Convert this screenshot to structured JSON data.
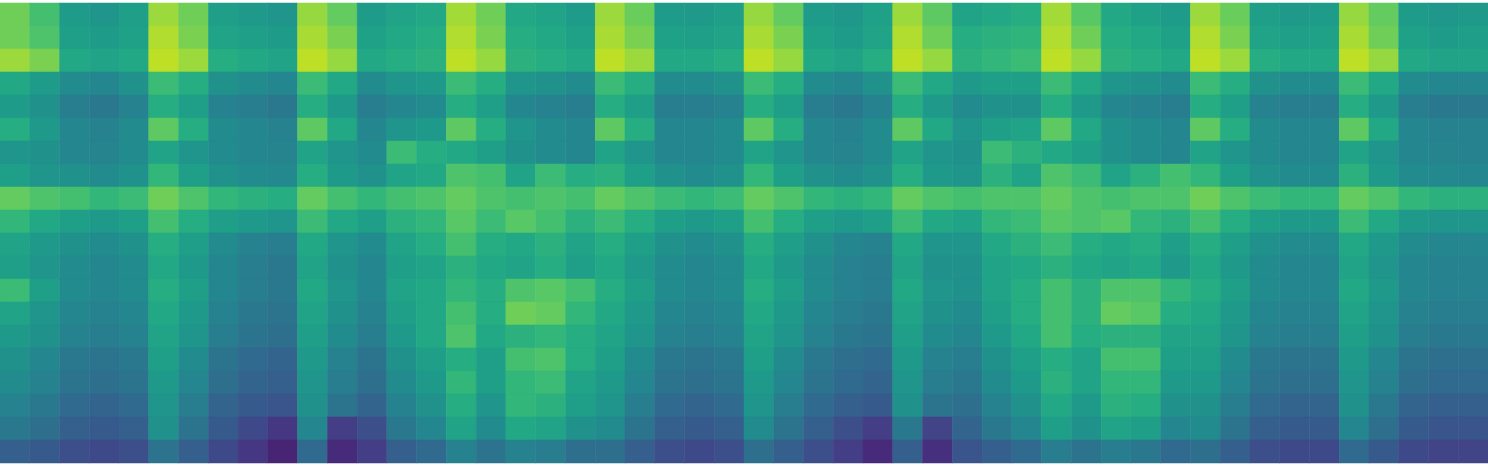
{
  "chart_data": {
    "type": "heatmap",
    "color": "viridis",
    "color_range": [
      0,
      100
    ],
    "tick_labels": false,
    "cells": [
      [
        78,
        70,
        55,
        52,
        56,
        85,
        78,
        56,
        54,
        52,
        84,
        76,
        55,
        58,
        60,
        86,
        78,
        60,
        58,
        55,
        85,
        77,
        55,
        54,
        56,
        84,
        76,
        55,
        53,
        57,
        85,
        75,
        58,
        60,
        62,
        86,
        74,
        60,
        57,
        55,
        85,
        77,
        56,
        54,
        55,
        84,
        76,
        55,
        53,
        54
      ],
      [
        78,
        72,
        56,
        55,
        57,
        88,
        80,
        58,
        56,
        55,
        87,
        80,
        57,
        60,
        62,
        88,
        80,
        62,
        60,
        57,
        87,
        80,
        57,
        56,
        58,
        87,
        80,
        57,
        55,
        58,
        88,
        78,
        62,
        64,
        65,
        88,
        78,
        62,
        60,
        57,
        88,
        80,
        58,
        56,
        57,
        87,
        78,
        57,
        55,
        56
      ],
      [
        85,
        80,
        60,
        58,
        60,
        90,
        85,
        62,
        60,
        58,
        90,
        84,
        60,
        62,
        64,
        90,
        84,
        64,
        62,
        60,
        90,
        85,
        60,
        60,
        62,
        90,
        84,
        60,
        58,
        62,
        90,
        84,
        64,
        66,
        68,
        90,
        84,
        64,
        62,
        60,
        90,
        85,
        62,
        60,
        60,
        90,
        84,
        60,
        58,
        58
      ],
      [
        60,
        55,
        48,
        46,
        50,
        68,
        62,
        50,
        48,
        46,
        68,
        60,
        48,
        52,
        54,
        68,
        62,
        52,
        50,
        48,
        68,
        62,
        48,
        48,
        50,
        68,
        62,
        48,
        46,
        50,
        68,
        60,
        54,
        56,
        56,
        68,
        60,
        52,
        50,
        48,
        68,
        62,
        50,
        48,
        48,
        68,
        60,
        48,
        46,
        46
      ],
      [
        55,
        50,
        42,
        40,
        44,
        62,
        56,
        44,
        42,
        40,
        62,
        54,
        42,
        46,
        48,
        62,
        56,
        46,
        44,
        42,
        62,
        56,
        42,
        42,
        44,
        62,
        56,
        42,
        40,
        44,
        62,
        54,
        48,
        50,
        50,
        62,
        54,
        46,
        44,
        42,
        62,
        56,
        44,
        42,
        42,
        62,
        54,
        42,
        40,
        40
      ],
      [
        62,
        54,
        46,
        44,
        48,
        75,
        62,
        48,
        46,
        44,
        75,
        60,
        46,
        52,
        54,
        75,
        62,
        52,
        48,
        46,
        75,
        62,
        46,
        46,
        48,
        75,
        62,
        46,
        44,
        48,
        75,
        60,
        52,
        56,
        58,
        75,
        60,
        50,
        48,
        46,
        75,
        62,
        48,
        46,
        46,
        75,
        60,
        46,
        44,
        44
      ],
      [
        52,
        50,
        46,
        45,
        48,
        58,
        52,
        48,
        46,
        45,
        58,
        52,
        48,
        68,
        62,
        60,
        56,
        50,
        48,
        46,
        58,
        52,
        46,
        46,
        48,
        58,
        52,
        46,
        45,
        48,
        58,
        52,
        50,
        68,
        64,
        60,
        56,
        50,
        48,
        46,
        58,
        52,
        48,
        46,
        46,
        58,
        52,
        46,
        45,
        44
      ],
      [
        56,
        52,
        50,
        48,
        50,
        66,
        56,
        50,
        48,
        47,
        62,
        54,
        50,
        58,
        60,
        72,
        70,
        58,
        68,
        62,
        64,
        56,
        50,
        48,
        50,
        66,
        56,
        50,
        48,
        50,
        62,
        54,
        52,
        64,
        58,
        72,
        68,
        58,
        64,
        70,
        66,
        56,
        50,
        48,
        48,
        64,
        54,
        48,
        47,
        46
      ],
      [
        76,
        72,
        70,
        66,
        68,
        78,
        72,
        66,
        64,
        62,
        76,
        70,
        66,
        70,
        72,
        76,
        72,
        70,
        72,
        70,
        76,
        72,
        68,
        66,
        68,
        76,
        72,
        66,
        64,
        66,
        76,
        72,
        70,
        72,
        72,
        76,
        72,
        70,
        72,
        72,
        78,
        72,
        68,
        66,
        66,
        76,
        72,
        66,
        64,
        64
      ],
      [
        66,
        60,
        56,
        54,
        56,
        70,
        62,
        56,
        54,
        52,
        68,
        60,
        56,
        64,
        66,
        74,
        68,
        74,
        70,
        64,
        68,
        62,
        56,
        54,
        56,
        70,
        62,
        56,
        54,
        56,
        68,
        60,
        58,
        66,
        68,
        74,
        72,
        74,
        66,
        64,
        70,
        62,
        56,
        54,
        54,
        68,
        60,
        54,
        52,
        52
      ],
      [
        58,
        54,
        50,
        48,
        50,
        62,
        56,
        48,
        44,
        42,
        60,
        52,
        48,
        58,
        62,
        70,
        62,
        60,
        64,
        58,
        62,
        56,
        50,
        48,
        50,
        62,
        56,
        50,
        46,
        44,
        60,
        52,
        52,
        60,
        64,
        68,
        62,
        60,
        62,
        56,
        62,
        56,
        50,
        48,
        48,
        60,
        54,
        48,
        46,
        46
      ],
      [
        56,
        52,
        48,
        46,
        48,
        60,
        54,
        46,
        42,
        40,
        58,
        50,
        46,
        56,
        58,
        64,
        60,
        58,
        62,
        56,
        60,
        54,
        48,
        46,
        48,
        60,
        54,
        48,
        44,
        42,
        58,
        50,
        50,
        58,
        60,
        64,
        60,
        58,
        60,
        54,
        60,
        54,
        48,
        46,
        46,
        58,
        52,
        46,
        44,
        44
      ],
      [
        68,
        56,
        48,
        46,
        48,
        62,
        56,
        46,
        42,
        40,
        60,
        52,
        46,
        58,
        60,
        66,
        62,
        72,
        74,
        70,
        62,
        56,
        48,
        46,
        48,
        62,
        56,
        48,
        44,
        42,
        60,
        52,
        50,
        58,
        62,
        70,
        64,
        72,
        72,
        66,
        62,
        56,
        48,
        46,
        46,
        60,
        54,
        46,
        44,
        44
      ],
      [
        58,
        52,
        46,
        44,
        46,
        60,
        54,
        44,
        40,
        38,
        58,
        50,
        44,
        56,
        60,
        70,
        62,
        78,
        76,
        66,
        60,
        54,
        46,
        44,
        46,
        60,
        54,
        46,
        42,
        40,
        58,
        50,
        48,
        56,
        62,
        70,
        64,
        76,
        74,
        62,
        60,
        54,
        46,
        44,
        44,
        58,
        52,
        44,
        42,
        42
      ],
      [
        54,
        50,
        44,
        42,
        44,
        58,
        52,
        42,
        38,
        36,
        56,
        48,
        42,
        54,
        60,
        72,
        60,
        64,
        66,
        62,
        58,
        52,
        44,
        42,
        44,
        58,
        52,
        44,
        40,
        38,
        56,
        48,
        46,
        54,
        60,
        70,
        62,
        64,
        64,
        58,
        58,
        52,
        44,
        42,
        42,
        56,
        50,
        42,
        40,
        40
      ],
      [
        50,
        46,
        40,
        38,
        40,
        56,
        48,
        38,
        34,
        32,
        54,
        44,
        38,
        50,
        56,
        62,
        56,
        70,
        72,
        62,
        56,
        48,
        40,
        38,
        40,
        56,
        48,
        40,
        36,
        34,
        54,
        44,
        42,
        50,
        56,
        62,
        58,
        70,
        70,
        56,
        56,
        48,
        40,
        38,
        38,
        54,
        46,
        38,
        36,
        36
      ],
      [
        48,
        44,
        38,
        36,
        38,
        54,
        46,
        36,
        32,
        30,
        52,
        42,
        36,
        48,
        54,
        66,
        56,
        66,
        68,
        58,
        54,
        46,
        38,
        36,
        38,
        54,
        46,
        38,
        34,
        32,
        52,
        42,
        40,
        48,
        54,
        64,
        58,
        66,
        66,
        54,
        54,
        46,
        38,
        36,
        36,
        52,
        44,
        36,
        34,
        34
      ],
      [
        44,
        40,
        34,
        32,
        34,
        52,
        42,
        32,
        28,
        26,
        50,
        38,
        32,
        44,
        50,
        62,
        52,
        66,
        64,
        56,
        52,
        42,
        34,
        32,
        34,
        52,
        42,
        34,
        30,
        28,
        50,
        38,
        36,
        44,
        50,
        60,
        54,
        64,
        62,
        50,
        50,
        42,
        34,
        32,
        32,
        50,
        40,
        32,
        30,
        30
      ],
      [
        40,
        36,
        30,
        28,
        30,
        50,
        38,
        28,
        22,
        16,
        46,
        18,
        24,
        40,
        46,
        58,
        48,
        60,
        58,
        50,
        48,
        38,
        30,
        28,
        30,
        48,
        38,
        30,
        24,
        18,
        40,
        20,
        32,
        40,
        46,
        56,
        50,
        58,
        56,
        46,
        48,
        38,
        30,
        28,
        28,
        46,
        36,
        28,
        26,
        26
      ],
      [
        30,
        28,
        24,
        22,
        24,
        38,
        30,
        22,
        16,
        10,
        34,
        12,
        18,
        30,
        34,
        44,
        38,
        44,
        42,
        36,
        36,
        30,
        24,
        22,
        24,
        36,
        30,
        24,
        18,
        12,
        30,
        14,
        26,
        30,
        34,
        42,
        38,
        42,
        40,
        34,
        36,
        30,
        24,
        22,
        22,
        34,
        28,
        22,
        20,
        20
      ]
    ]
  }
}
